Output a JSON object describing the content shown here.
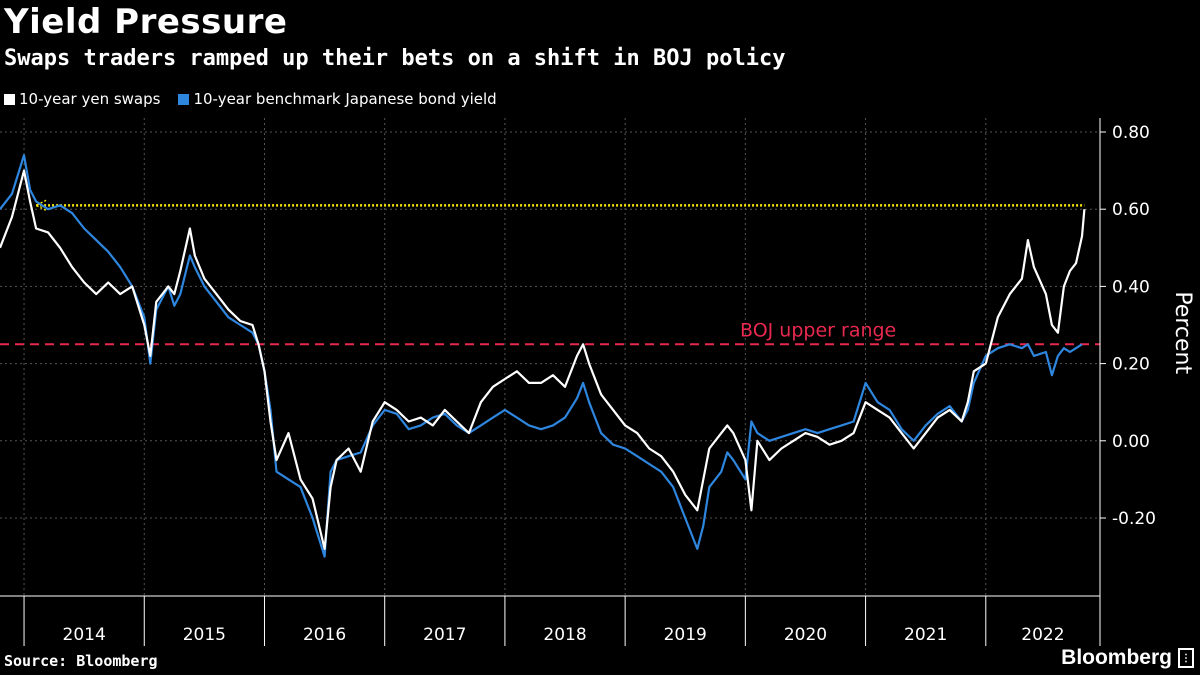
{
  "chart_data": {
    "type": "line",
    "title": "Yield Pressure",
    "subtitle": "Swaps traders ramped up their bets on a shift in BOJ policy",
    "ylabel": "Percent",
    "ylim": [
      -0.4,
      0.82
    ],
    "yticks": [
      0.8,
      0.6,
      0.4,
      0.2,
      0.0,
      -0.2
    ],
    "ytick_labels": [
      "0.80",
      "0.60",
      "0.40",
      "0.20",
      "0.00",
      "-0.20"
    ],
    "xlim": [
      2013.8,
      2022.95
    ],
    "year_labels": [
      "2014",
      "2015",
      "2016",
      "2017",
      "2018",
      "2019",
      "2020",
      "2021",
      "2022"
    ],
    "grid": true,
    "legend_position": "top-left",
    "series": [
      {
        "name": "10-year yen swaps",
        "color": "#ffffff",
        "points": [
          [
            2013.8,
            0.5
          ],
          [
            2013.9,
            0.58
          ],
          [
            2014.0,
            0.7
          ],
          [
            2014.05,
            0.62
          ],
          [
            2014.1,
            0.55
          ],
          [
            2014.2,
            0.54
          ],
          [
            2014.3,
            0.5
          ],
          [
            2014.4,
            0.45
          ],
          [
            2014.5,
            0.41
          ],
          [
            2014.6,
            0.38
          ],
          [
            2014.7,
            0.41
          ],
          [
            2014.8,
            0.38
          ],
          [
            2014.9,
            0.4
          ],
          [
            2015.0,
            0.3
          ],
          [
            2015.05,
            0.22
          ],
          [
            2015.1,
            0.36
          ],
          [
            2015.2,
            0.4
          ],
          [
            2015.25,
            0.38
          ],
          [
            2015.3,
            0.44
          ],
          [
            2015.38,
            0.55
          ],
          [
            2015.42,
            0.48
          ],
          [
            2015.5,
            0.42
          ],
          [
            2015.6,
            0.38
          ],
          [
            2015.7,
            0.34
          ],
          [
            2015.8,
            0.31
          ],
          [
            2015.9,
            0.3
          ],
          [
            2015.95,
            0.25
          ],
          [
            2016.0,
            0.18
          ],
          [
            2016.05,
            0.05
          ],
          [
            2016.1,
            -0.05
          ],
          [
            2016.2,
            0.02
          ],
          [
            2016.3,
            -0.1
          ],
          [
            2016.4,
            -0.15
          ],
          [
            2016.5,
            -0.28
          ],
          [
            2016.55,
            -0.12
          ],
          [
            2016.6,
            -0.05
          ],
          [
            2016.7,
            -0.02
          ],
          [
            2016.8,
            -0.08
          ],
          [
            2016.9,
            0.05
          ],
          [
            2017.0,
            0.1
          ],
          [
            2017.1,
            0.08
          ],
          [
            2017.2,
            0.05
          ],
          [
            2017.3,
            0.06
          ],
          [
            2017.4,
            0.04
          ],
          [
            2017.5,
            0.08
          ],
          [
            2017.6,
            0.05
          ],
          [
            2017.7,
            0.02
          ],
          [
            2017.8,
            0.1
          ],
          [
            2017.9,
            0.14
          ],
          [
            2018.0,
            0.16
          ],
          [
            2018.1,
            0.18
          ],
          [
            2018.2,
            0.15
          ],
          [
            2018.3,
            0.15
          ],
          [
            2018.4,
            0.17
          ],
          [
            2018.5,
            0.14
          ],
          [
            2018.6,
            0.22
          ],
          [
            2018.65,
            0.25
          ],
          [
            2018.7,
            0.2
          ],
          [
            2018.8,
            0.12
          ],
          [
            2018.9,
            0.08
          ],
          [
            2019.0,
            0.04
          ],
          [
            2019.1,
            0.02
          ],
          [
            2019.2,
            -0.02
          ],
          [
            2019.3,
            -0.04
          ],
          [
            2019.4,
            -0.08
          ],
          [
            2019.5,
            -0.14
          ],
          [
            2019.6,
            -0.18
          ],
          [
            2019.65,
            -0.1
          ],
          [
            2019.7,
            -0.02
          ],
          [
            2019.8,
            0.02
          ],
          [
            2019.85,
            0.04
          ],
          [
            2019.9,
            0.02
          ],
          [
            2020.0,
            -0.05
          ],
          [
            2020.05,
            -0.18
          ],
          [
            2020.1,
            0.0
          ],
          [
            2020.2,
            -0.05
          ],
          [
            2020.3,
            -0.02
          ],
          [
            2020.4,
            0.0
          ],
          [
            2020.5,
            0.02
          ],
          [
            2020.6,
            0.01
          ],
          [
            2020.7,
            -0.01
          ],
          [
            2020.8,
            0.0
          ],
          [
            2020.9,
            0.02
          ],
          [
            2021.0,
            0.1
          ],
          [
            2021.1,
            0.08
          ],
          [
            2021.2,
            0.06
          ],
          [
            2021.3,
            0.02
          ],
          [
            2021.4,
            -0.02
          ],
          [
            2021.5,
            0.02
          ],
          [
            2021.6,
            0.06
          ],
          [
            2021.7,
            0.08
          ],
          [
            2021.8,
            0.05
          ],
          [
            2021.85,
            0.1
          ],
          [
            2021.9,
            0.18
          ],
          [
            2022.0,
            0.2
          ],
          [
            2022.1,
            0.32
          ],
          [
            2022.2,
            0.38
          ],
          [
            2022.3,
            0.42
          ],
          [
            2022.35,
            0.52
          ],
          [
            2022.4,
            0.45
          ],
          [
            2022.5,
            0.38
          ],
          [
            2022.55,
            0.3
          ],
          [
            2022.6,
            0.28
          ],
          [
            2022.65,
            0.4
          ],
          [
            2022.7,
            0.44
          ],
          [
            2022.75,
            0.46
          ],
          [
            2022.8,
            0.53
          ],
          [
            2022.82,
            0.6
          ]
        ]
      },
      {
        "name": "10-year benchmark Japanese bond yield",
        "color": "#2e86de",
        "points": [
          [
            2013.8,
            0.6
          ],
          [
            2013.9,
            0.64
          ],
          [
            2014.0,
            0.74
          ],
          [
            2014.05,
            0.65
          ],
          [
            2014.1,
            0.62
          ],
          [
            2014.2,
            0.6
          ],
          [
            2014.3,
            0.61
          ],
          [
            2014.4,
            0.59
          ],
          [
            2014.5,
            0.55
          ],
          [
            2014.6,
            0.52
          ],
          [
            2014.7,
            0.49
          ],
          [
            2014.8,
            0.45
          ],
          [
            2014.9,
            0.4
          ],
          [
            2015.0,
            0.32
          ],
          [
            2015.05,
            0.2
          ],
          [
            2015.1,
            0.34
          ],
          [
            2015.2,
            0.4
          ],
          [
            2015.25,
            0.35
          ],
          [
            2015.3,
            0.38
          ],
          [
            2015.38,
            0.48
          ],
          [
            2015.42,
            0.45
          ],
          [
            2015.5,
            0.4
          ],
          [
            2015.6,
            0.36
          ],
          [
            2015.7,
            0.32
          ],
          [
            2015.8,
            0.3
          ],
          [
            2015.9,
            0.28
          ],
          [
            2015.95,
            0.25
          ],
          [
            2016.0,
            0.18
          ],
          [
            2016.05,
            0.08
          ],
          [
            2016.1,
            -0.08
          ],
          [
            2016.2,
            -0.1
          ],
          [
            2016.3,
            -0.12
          ],
          [
            2016.4,
            -0.2
          ],
          [
            2016.5,
            -0.3
          ],
          [
            2016.55,
            -0.08
          ],
          [
            2016.6,
            -0.05
          ],
          [
            2016.7,
            -0.04
          ],
          [
            2016.8,
            -0.03
          ],
          [
            2016.9,
            0.04
          ],
          [
            2017.0,
            0.08
          ],
          [
            2017.1,
            0.07
          ],
          [
            2017.2,
            0.03
          ],
          [
            2017.3,
            0.04
          ],
          [
            2017.4,
            0.06
          ],
          [
            2017.5,
            0.07
          ],
          [
            2017.6,
            0.04
          ],
          [
            2017.7,
            0.02
          ],
          [
            2017.8,
            0.04
          ],
          [
            2017.9,
            0.06
          ],
          [
            2018.0,
            0.08
          ],
          [
            2018.1,
            0.06
          ],
          [
            2018.2,
            0.04
          ],
          [
            2018.3,
            0.03
          ],
          [
            2018.4,
            0.04
          ],
          [
            2018.5,
            0.06
          ],
          [
            2018.6,
            0.11
          ],
          [
            2018.65,
            0.15
          ],
          [
            2018.7,
            0.1
          ],
          [
            2018.8,
            0.02
          ],
          [
            2018.9,
            -0.01
          ],
          [
            2019.0,
            -0.02
          ],
          [
            2019.1,
            -0.04
          ],
          [
            2019.2,
            -0.06
          ],
          [
            2019.3,
            -0.08
          ],
          [
            2019.4,
            -0.12
          ],
          [
            2019.5,
            -0.2
          ],
          [
            2019.6,
            -0.28
          ],
          [
            2019.65,
            -0.22
          ],
          [
            2019.7,
            -0.12
          ],
          [
            2019.8,
            -0.08
          ],
          [
            2019.85,
            -0.03
          ],
          [
            2019.9,
            -0.05
          ],
          [
            2020.0,
            -0.1
          ],
          [
            2020.05,
            0.05
          ],
          [
            2020.1,
            0.02
          ],
          [
            2020.2,
            0.0
          ],
          [
            2020.3,
            0.01
          ],
          [
            2020.4,
            0.02
          ],
          [
            2020.5,
            0.03
          ],
          [
            2020.6,
            0.02
          ],
          [
            2020.7,
            0.03
          ],
          [
            2020.8,
            0.04
          ],
          [
            2020.9,
            0.05
          ],
          [
            2021.0,
            0.15
          ],
          [
            2021.1,
            0.1
          ],
          [
            2021.2,
            0.08
          ],
          [
            2021.3,
            0.03
          ],
          [
            2021.4,
            0.0
          ],
          [
            2021.5,
            0.04
          ],
          [
            2021.6,
            0.07
          ],
          [
            2021.7,
            0.09
          ],
          [
            2021.8,
            0.05
          ],
          [
            2021.85,
            0.08
          ],
          [
            2021.9,
            0.15
          ],
          [
            2022.0,
            0.22
          ],
          [
            2022.1,
            0.24
          ],
          [
            2022.2,
            0.25
          ],
          [
            2022.3,
            0.24
          ],
          [
            2022.35,
            0.25
          ],
          [
            2022.4,
            0.22
          ],
          [
            2022.5,
            0.23
          ],
          [
            2022.55,
            0.17
          ],
          [
            2022.6,
            0.22
          ],
          [
            2022.65,
            0.24
          ],
          [
            2022.7,
            0.23
          ],
          [
            2022.75,
            0.24
          ],
          [
            2022.8,
            0.25
          ]
        ]
      }
    ],
    "annotations": [
      {
        "text": "BOJ upper range",
        "y": 0.25,
        "color": "#e8294f",
        "style": "dashed"
      },
      {
        "text": "",
        "y": 0.61,
        "color": "#f5e400",
        "style": "dotted",
        "x_start": 2014.1,
        "x_end": 2022.82
      }
    ],
    "source": "Source: Bloomberg",
    "brand": "Bloomberg"
  }
}
